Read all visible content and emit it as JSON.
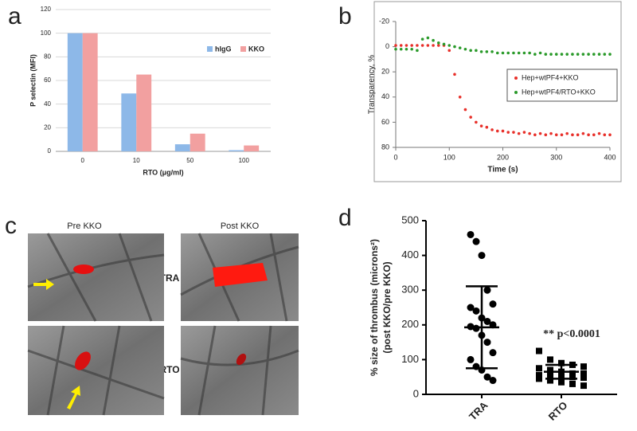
{
  "panel_labels": [
    "a",
    "b",
    "c",
    "d"
  ],
  "micrographs": {
    "columns": [
      "Pre KKO",
      "Post KKO"
    ],
    "rows": [
      "TRA",
      "RTO"
    ]
  },
  "chart_data": [
    {
      "type": "bar",
      "y_label": "P selectin (MFI)",
      "x_label": "RTO (μg/ml)",
      "categories": [
        "0",
        "10",
        "50",
        "100"
      ],
      "series": [
        {
          "name": "hIgG",
          "color": "#8db8e8",
          "values": [
            100,
            49,
            6,
            1
          ]
        },
        {
          "name": "KKO",
          "color": "#f2a0a0",
          "values": [
            100,
            65,
            15,
            5
          ]
        }
      ],
      "ylim": [
        0,
        120
      ],
      "yticks": [
        0,
        20,
        40,
        60,
        80,
        100,
        120
      ],
      "grid": true,
      "legend": "upper-right"
    },
    {
      "type": "scatter",
      "y_label": "Transparency, %",
      "x_label": "Time (s)",
      "x": [
        0,
        10,
        20,
        30,
        40,
        50,
        60,
        70,
        80,
        90,
        100,
        110,
        120,
        130,
        140,
        150,
        160,
        170,
        180,
        190,
        200,
        210,
        220,
        230,
        240,
        250,
        260,
        270,
        280,
        290,
        300,
        310,
        320,
        330,
        340,
        350,
        360,
        370,
        380,
        390,
        400
      ],
      "series": [
        {
          "name": "Hep+wtPF4+KKO",
          "color": "#e8302a",
          "values": [
            -1,
            -1,
            -1,
            -1,
            -1,
            -1,
            -1,
            -1,
            -1,
            -1,
            3,
            22,
            40,
            50,
            56,
            60,
            63,
            64,
            66,
            67,
            67,
            68,
            68,
            69,
            68,
            69,
            70,
            69,
            70,
            69,
            70,
            70,
            69,
            70,
            70,
            69,
            70,
            70,
            69,
            70,
            70
          ]
        },
        {
          "name": "Hep+wtPF4/RTO+KKO",
          "color": "#2a9a2a",
          "values": [
            2,
            2,
            2,
            2,
            3,
            -6,
            -7,
            -5,
            -3,
            -2,
            -1,
            0,
            1,
            2,
            3,
            3,
            4,
            4,
            4,
            5,
            5,
            5,
            5,
            5,
            5,
            5,
            6,
            5,
            6,
            6,
            6,
            6,
            6,
            6,
            6,
            6,
            6,
            6,
            6,
            6,
            6
          ]
        }
      ],
      "xlim": [
        0,
        400
      ],
      "xticks": [
        0,
        100,
        200,
        300,
        400
      ],
      "ylim": [
        -20,
        80
      ],
      "yticks": [
        -20,
        0,
        20,
        40,
        60,
        80
      ],
      "y_reversed": true,
      "grid": false,
      "legend": "right"
    },
    {
      "type": "dot",
      "y_label": [
        "% size of thrombus (microns²)",
        "(post KKO/pre KKO)"
      ],
      "annotation": "** p<0.0001",
      "groups": [
        {
          "name": "TRA",
          "marker": "circle",
          "mean": 193,
          "sd": 118,
          "values": [
            460,
            440,
            400,
            300,
            260,
            250,
            240,
            220,
            210,
            200,
            195,
            190,
            170,
            150,
            120,
            100,
            80,
            70,
            50,
            40
          ]
        },
        {
          "name": "RTO",
          "marker": "square",
          "mean": 65,
          "sd": 20,
          "values": [
            125,
            100,
            90,
            85,
            80,
            75,
            70,
            65,
            60,
            60,
            55,
            55,
            50,
            50,
            48,
            45,
            40,
            35,
            30,
            25
          ]
        }
      ],
      "ylim": [
        0,
        500
      ],
      "yticks": [
        0,
        100,
        200,
        300,
        400,
        500
      ]
    }
  ]
}
